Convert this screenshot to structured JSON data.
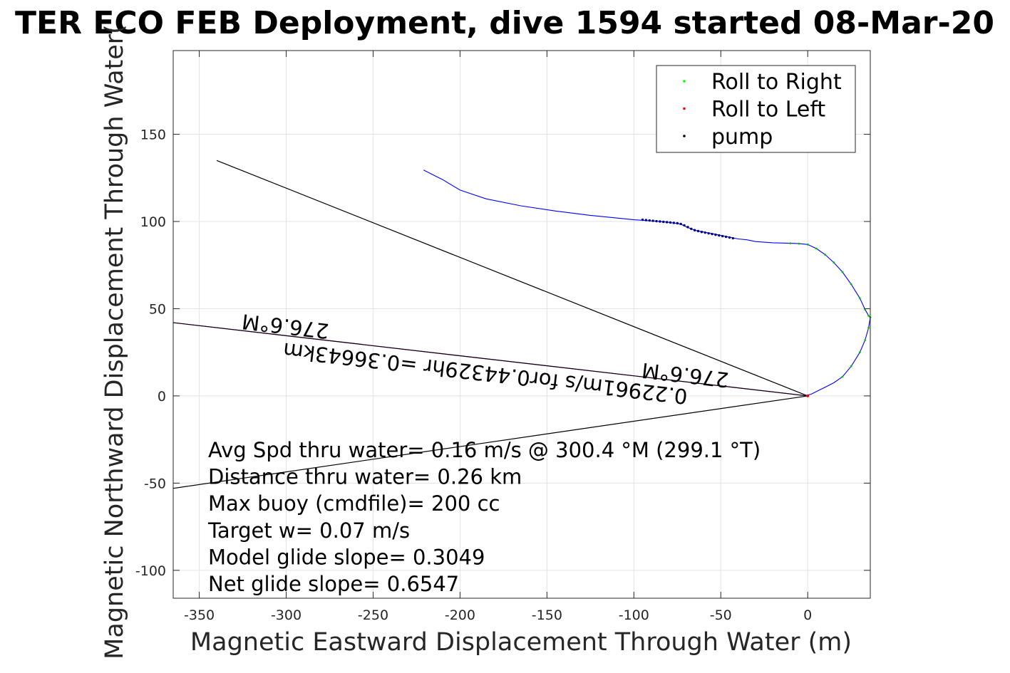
{
  "chart_data": {
    "type": "line",
    "title": "TER ECO FEB Deployment, dive 1594 started 08-Mar-20",
    "xlabel": "Magnetic Eastward Displacement Through Water (m)",
    "ylabel": "Magnetic Northward Displacement Through Water(",
    "xlim": [
      -365,
      36
    ],
    "ylim": [
      -116,
      198
    ],
    "xticks": [
      -350,
      -300,
      -250,
      -200,
      -150,
      -100,
      -50,
      0
    ],
    "yticks": [
      -100,
      -50,
      0,
      50,
      100,
      150
    ],
    "grid": true,
    "legend_position": "top-right",
    "legend": [
      {
        "label": "Roll to Right",
        "color": "#00ff00"
      },
      {
        "label": "Roll to Left",
        "color": "#ff0000"
      },
      {
        "label": "pump",
        "color": "#000000"
      }
    ],
    "series": [
      {
        "color": "#0000ff",
        "x": [
          -221,
          -210,
          -200,
          -185,
          -165,
          -145,
          -125,
          -110,
          -100,
          -92,
          -85,
          -80,
          -76,
          -73,
          -70,
          -65,
          -60,
          -55,
          -50,
          -45,
          -40,
          -35,
          -30,
          -20,
          -10,
          -5,
          0,
          5,
          10,
          15,
          20,
          25,
          30,
          33,
          35,
          36,
          35,
          33,
          30,
          25,
          20,
          15,
          10,
          5,
          2,
          0
        ],
        "y": [
          129.5,
          124,
          118,
          113,
          109,
          106,
          103.5,
          102,
          101,
          100.5,
          100,
          99.5,
          99,
          98.5,
          97,
          95,
          94,
          93,
          92,
          91,
          90,
          89.5,
          88.5,
          87.8,
          87.5,
          87.3,
          86.8,
          84.5,
          81,
          76.5,
          71,
          64,
          56,
          49.5,
          46,
          45,
          39,
          32,
          25,
          17,
          11,
          7.5,
          5,
          2.5,
          1,
          0.5
        ]
      }
    ],
    "pump_points": {
      "color": "#000080",
      "x": [
        -95,
        -93,
        -91,
        -89,
        -87,
        -85,
        -83,
        -81,
        -79,
        -77,
        -75,
        -73,
        -71,
        -69,
        -67,
        -65,
        -63,
        -61,
        -59,
        -57,
        -55,
        -53,
        -51,
        -49,
        -47,
        -45,
        -43
      ],
      "y": [
        101,
        100.8,
        100.6,
        100.4,
        100.2,
        100,
        99.8,
        99.6,
        99.4,
        99.2,
        99,
        98.6,
        97.8,
        96.8,
        95.8,
        95,
        94.5,
        94,
        93.6,
        93.2,
        92.8,
        92.4,
        92,
        91.6,
        91.2,
        90.8,
        90.4
      ]
    },
    "reference_lines": [
      {
        "color": "#000000",
        "x": [
          -340,
          0
        ],
        "y": [
          135,
          0
        ]
      },
      {
        "color": "#000000",
        "x": [
          -365,
          0
        ],
        "y": [
          -53,
          0
        ]
      },
      {
        "color": "#ff00ff",
        "x": [
          -365,
          0
        ],
        "y": [
          42,
          0
        ]
      },
      {
        "color": "#000000",
        "x": [
          -365,
          0
        ],
        "y": [
          42,
          0
        ]
      }
    ],
    "vector_labels": [
      {
        "text": "276.6°M",
        "x": -300,
        "y": 44
      },
      {
        "text": "276.6°M",
        "x": -70,
        "y": 16
      },
      {
        "text": "0.22961m/s for0.44329hr =0.36643km",
        "x": -185,
        "y": 17
      }
    ],
    "annotations": [
      "Avg Spd thru water=  0.16 m/s @ 300.4 °M (299.1 °T)",
      "Distance thru water=  0.26 km",
      "Max buoy (cmdfile)= 200 cc",
      "Target w= 0.07 m/s",
      "Model glide slope= 0.3049",
      "Net glide slope= 0.6547"
    ]
  }
}
